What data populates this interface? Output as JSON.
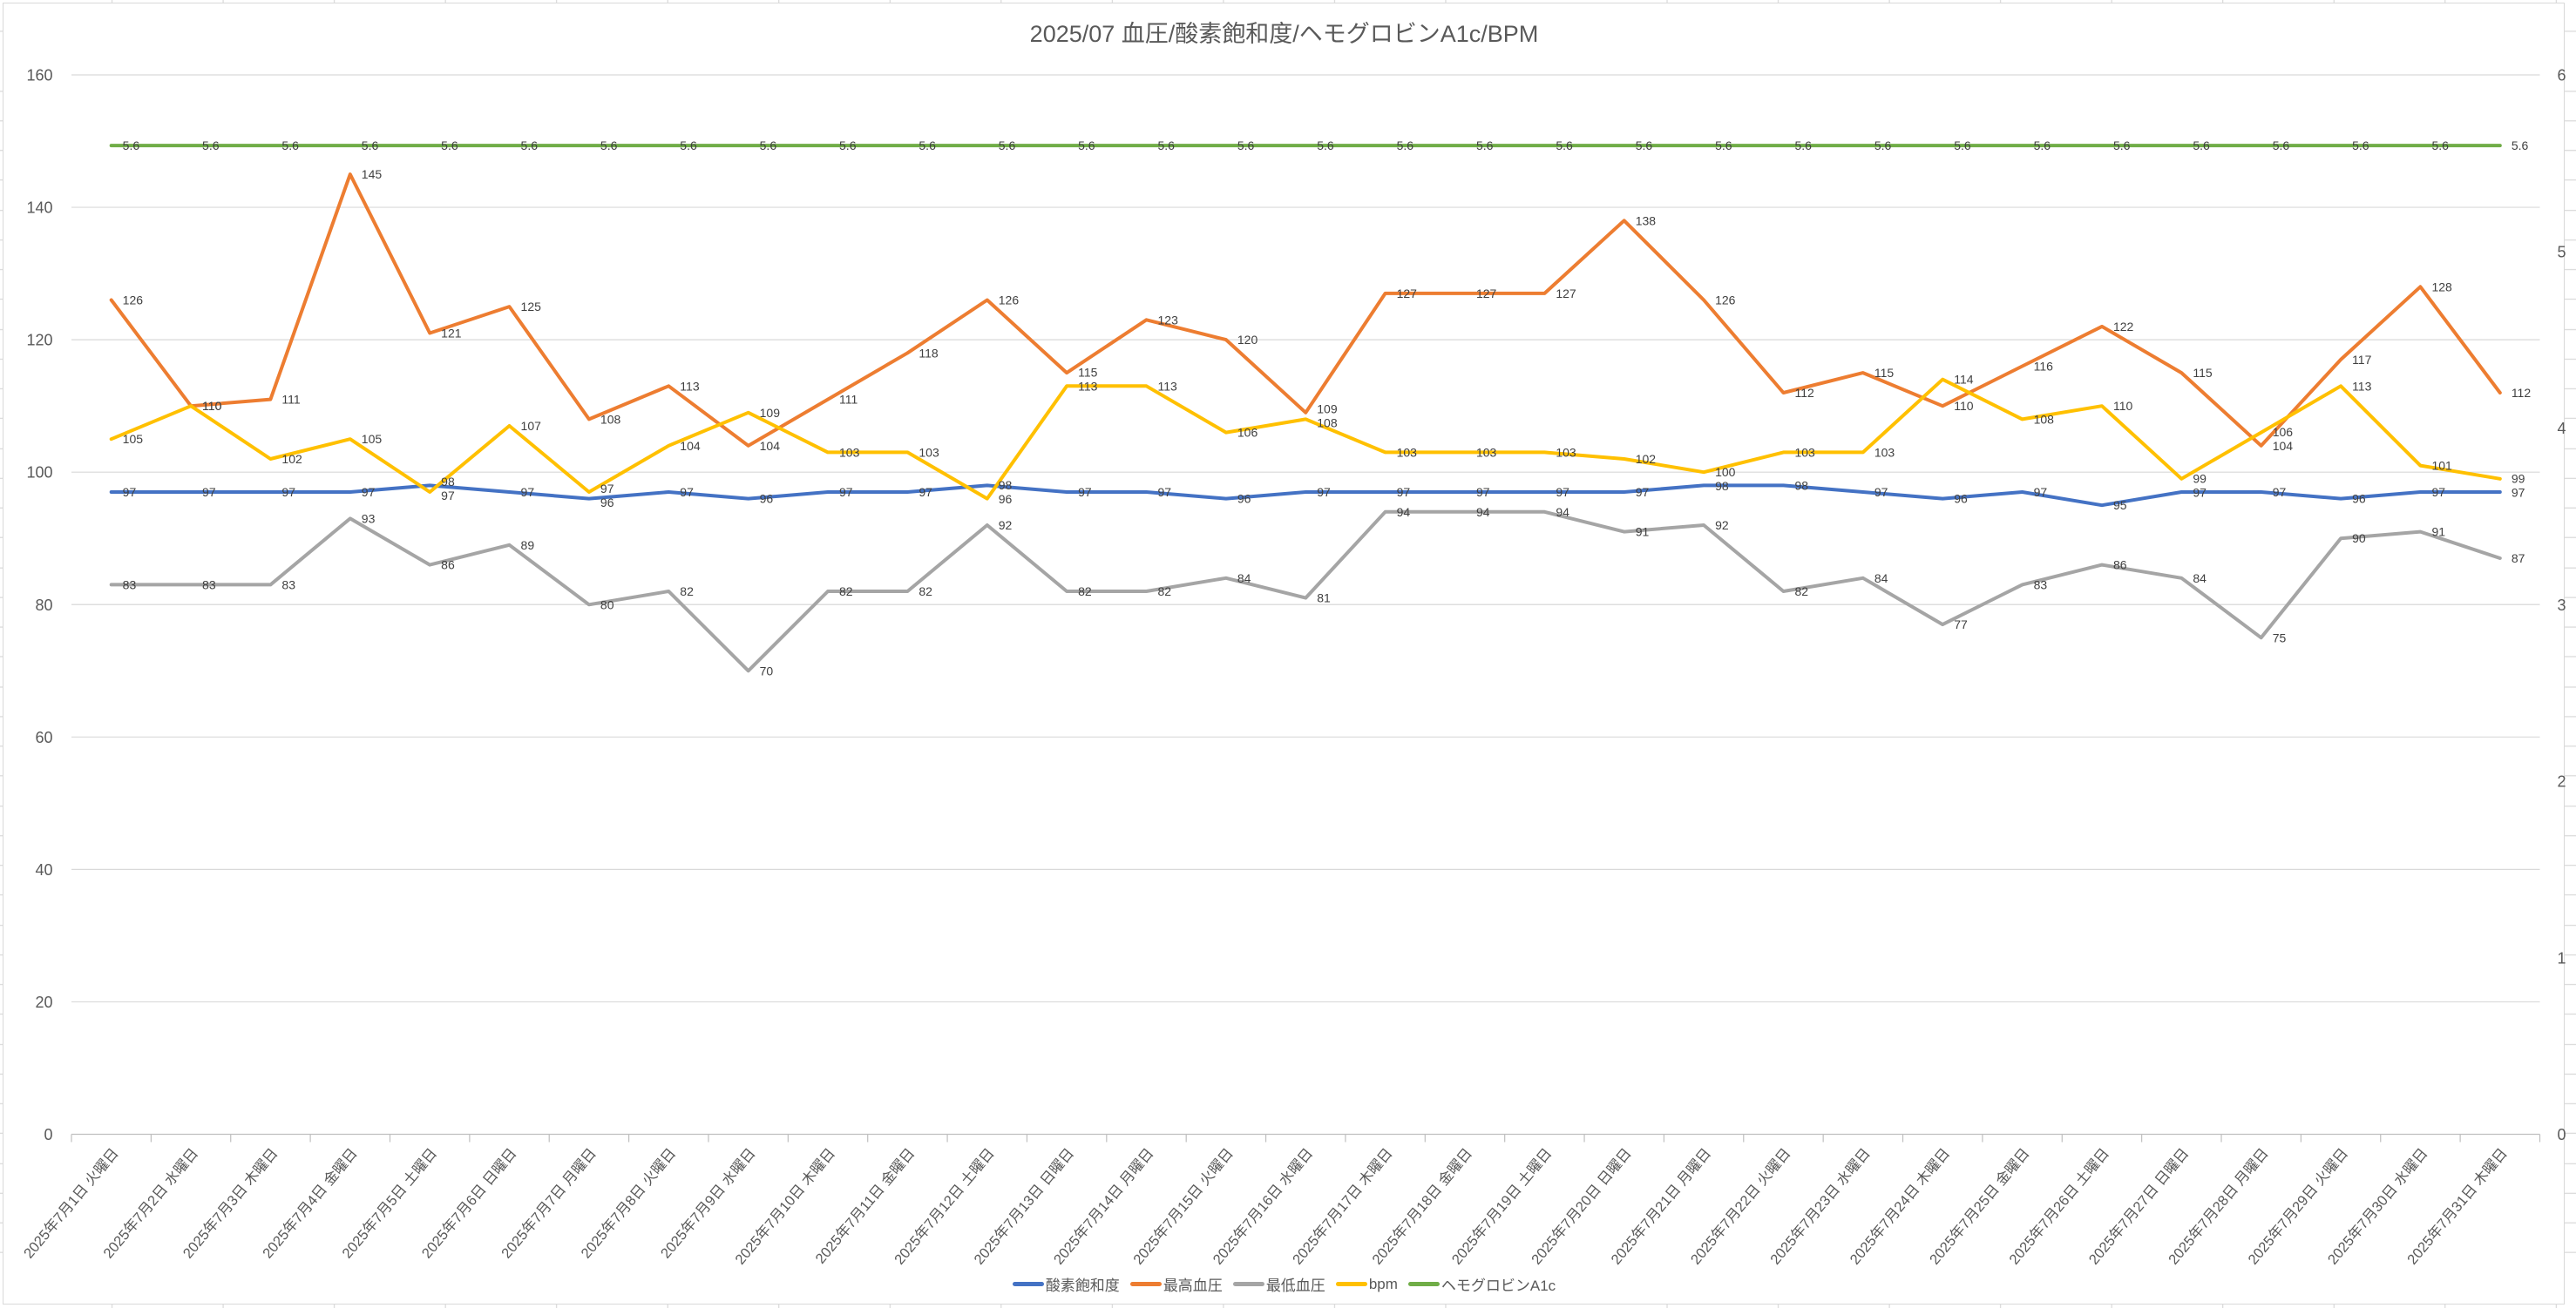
{
  "chart_data": {
    "type": "line",
    "title": "2025/07 血圧/酸素飽和度/ヘモグロビンA1c/BPM",
    "categories": [
      "2025年7月1日 火曜日",
      "2025年7月2日 水曜日",
      "2025年7月3日 木曜日",
      "2025年7月4日 金曜日",
      "2025年7月5日 土曜日",
      "2025年7月6日 日曜日",
      "2025年7月7日 月曜日",
      "2025年7月8日 火曜日",
      "2025年7月9日 水曜日",
      "2025年7月10日 木曜日",
      "2025年7月11日 金曜日",
      "2025年7月12日 土曜日",
      "2025年7月13日 日曜日",
      "2025年7月14日 月曜日",
      "2025年7月15日 火曜日",
      "2025年7月16日 水曜日",
      "2025年7月17日 木曜日",
      "2025年7月18日 金曜日",
      "2025年7月19日 土曜日",
      "2025年7月20日 日曜日",
      "2025年7月21日 月曜日",
      "2025年7月22日 火曜日",
      "2025年7月23日 水曜日",
      "2025年7月24日 木曜日",
      "2025年7月25日 金曜日",
      "2025年7月26日 土曜日",
      "2025年7月27日 日曜日",
      "2025年7月28日 月曜日",
      "2025年7月29日 火曜日",
      "2025年7月30日 水曜日",
      "2025年7月31日 木曜日"
    ],
    "series": [
      {
        "name": "酸素飽和度",
        "color": "#4472C4",
        "axis": "left",
        "values": [
          97,
          97,
          97,
          97,
          98,
          97,
          96,
          97,
          96,
          97,
          97,
          98,
          97,
          97,
          96,
          97,
          97,
          97,
          97,
          97,
          98,
          98,
          97,
          96,
          97,
          95,
          97,
          97,
          96,
          97,
          97
        ]
      },
      {
        "name": "最高血圧",
        "color": "#ED7D31",
        "axis": "left",
        "values": [
          126,
          110,
          111,
          145,
          121,
          125,
          108,
          113,
          104,
          111,
          118,
          126,
          115,
          123,
          120,
          109,
          127,
          127,
          127,
          138,
          126,
          112,
          115,
          110,
          116,
          122,
          115,
          104,
          117,
          128,
          112
        ]
      },
      {
        "name": "最低血圧",
        "color": "#A5A5A5",
        "axis": "left",
        "values": [
          83,
          83,
          83,
          93,
          86,
          89,
          80,
          82,
          70,
          82,
          82,
          92,
          82,
          82,
          84,
          81,
          94,
          94,
          94,
          91,
          92,
          82,
          84,
          77,
          83,
          86,
          84,
          75,
          90,
          91,
          87
        ]
      },
      {
        "name": "bpm",
        "color": "#FFC000",
        "axis": "left",
        "values": [
          105,
          110,
          102,
          105,
          97,
          107,
          97,
          104,
          109,
          103,
          103,
          96,
          113,
          113,
          106,
          108,
          103,
          103,
          103,
          102,
          100,
          103,
          103,
          114,
          108,
          110,
          99,
          106,
          113,
          101,
          99
        ]
      },
      {
        "name": "ヘモグロビンA1c",
        "color": "#70AD47",
        "axis": "right",
        "values": [
          5.6,
          5.6,
          5.6,
          5.6,
          5.6,
          5.6,
          5.6,
          5.6,
          5.6,
          5.6,
          5.6,
          5.6,
          5.6,
          5.6,
          5.6,
          5.6,
          5.6,
          5.6,
          5.6,
          5.6,
          5.6,
          5.6,
          5.6,
          5.6,
          5.6,
          5.6,
          5.6,
          5.6,
          5.6,
          5.6,
          5.6
        ]
      }
    ],
    "left_axis": {
      "min": 0,
      "max": 160,
      "step": 20,
      "ticks": [
        0,
        20,
        40,
        60,
        80,
        100,
        120,
        140,
        160
      ]
    },
    "right_axis": {
      "min": 0,
      "max": 6,
      "step": 1,
      "ticks": [
        0,
        1,
        2,
        3,
        4,
        5,
        6
      ]
    },
    "grid": true,
    "data_labels": true,
    "legend_position": "bottom"
  },
  "colors": {
    "background": "#FFFFFF",
    "text": "#595959",
    "data_label": "#404040",
    "gridline": "#D9D9D9",
    "axis_line": "#BFBFBF",
    "sheet_gridline": "#D2D2D2"
  }
}
